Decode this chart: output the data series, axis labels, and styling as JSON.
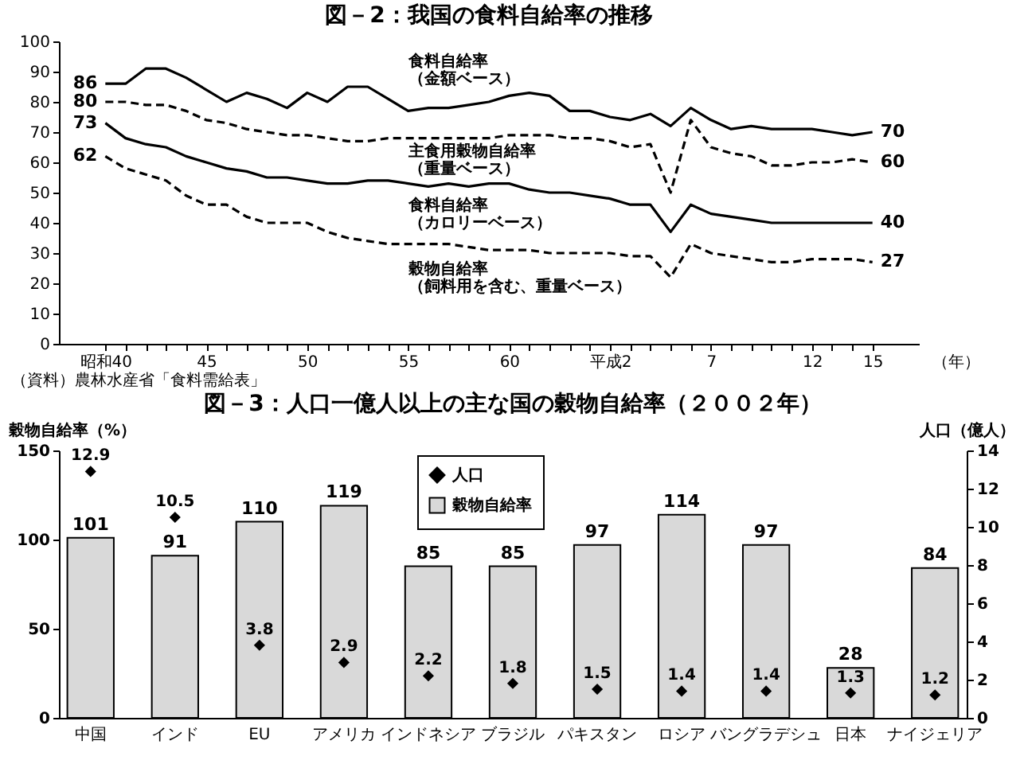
{
  "chart_data": [
    {
      "type": "line",
      "title": "図－2：我国の食料自給率の推移",
      "xlabel": "（年）",
      "categories": [
        "昭和40",
        null,
        null,
        null,
        null,
        "45",
        null,
        null,
        null,
        null,
        "50",
        null,
        null,
        null,
        null,
        "55",
        null,
        null,
        null,
        null,
        "60",
        null,
        null,
        null,
        null,
        "平成2",
        null,
        null,
        null,
        null,
        "7",
        null,
        null,
        null,
        null,
        "12",
        null,
        null,
        "15"
      ],
      "ylim": [
        0,
        100
      ],
      "yticks": [
        0,
        10,
        20,
        30,
        40,
        50,
        60,
        70,
        80,
        90,
        100
      ],
      "grid": false,
      "series": [
        {
          "name": "食料自給率（金額ベース）",
          "color": "#000000",
          "line_style": "solid",
          "values": [
            86,
            86,
            91,
            91,
            88,
            84,
            80,
            83,
            81,
            78,
            83,
            80,
            85,
            85,
            81,
            77,
            78,
            78,
            79,
            80,
            82,
            83,
            82,
            77,
            77,
            75,
            74,
            76,
            72,
            78,
            74,
            71,
            72,
            71,
            71,
            71,
            70,
            69,
            70
          ],
          "value_labels": [
            "86",
            null,
            null,
            null,
            null,
            null,
            null,
            null,
            null,
            null,
            null,
            null,
            null,
            null,
            null,
            null,
            null,
            null,
            null,
            null,
            null,
            null,
            null,
            null,
            null,
            null,
            null,
            null,
            null,
            null,
            null,
            null,
            null,
            null,
            null,
            null,
            null,
            null,
            "70"
          ]
        },
        {
          "name": "主食用穀物自給率（重量ベース）",
          "color": "#000000",
          "line_style": "dashed",
          "values": [
            80,
            80,
            79,
            79,
            77,
            74,
            73,
            71,
            70,
            69,
            69,
            68,
            67,
            67,
            68,
            68,
            68,
            68,
            68,
            68,
            69,
            69,
            69,
            68,
            68,
            67,
            65,
            66,
            50,
            74,
            65,
            63,
            62,
            59,
            59,
            60,
            60,
            61,
            60
          ],
          "value_labels": [
            "80",
            null,
            null,
            null,
            null,
            null,
            null,
            null,
            null,
            null,
            null,
            null,
            null,
            null,
            null,
            null,
            null,
            null,
            null,
            null,
            null,
            null,
            null,
            null,
            null,
            null,
            null,
            null,
            null,
            null,
            null,
            null,
            null,
            null,
            null,
            null,
            null,
            null,
            "60"
          ]
        },
        {
          "name": "食料自給率（カロリーベース）",
          "color": "#000000",
          "line_style": "solid",
          "values": [
            73,
            68,
            66,
            65,
            62,
            60,
            58,
            57,
            55,
            55,
            54,
            53,
            53,
            54,
            54,
            53,
            52,
            53,
            52,
            53,
            53,
            51,
            50,
            50,
            49,
            48,
            46,
            46,
            37,
            46,
            43,
            42,
            41,
            40,
            40,
            40,
            40,
            40,
            40
          ],
          "value_labels": [
            "73",
            null,
            null,
            null,
            null,
            null,
            null,
            null,
            null,
            null,
            null,
            null,
            null,
            null,
            null,
            null,
            null,
            null,
            null,
            null,
            null,
            null,
            null,
            null,
            null,
            null,
            null,
            null,
            null,
            null,
            null,
            null,
            null,
            null,
            null,
            null,
            null,
            null,
            "40"
          ]
        },
        {
          "name": "穀物自給率（飼料用を含む、重量ベース）",
          "color": "#000000",
          "line_style": "dashed",
          "values": [
            62,
            58,
            56,
            54,
            49,
            46,
            46,
            42,
            40,
            40,
            40,
            37,
            35,
            34,
            33,
            33,
            33,
            33,
            32,
            31,
            31,
            31,
            30,
            30,
            30,
            30,
            29,
            29,
            22,
            33,
            30,
            29,
            28,
            27,
            27,
            28,
            28,
            28,
            27
          ],
          "value_labels": [
            "62",
            null,
            null,
            null,
            null,
            null,
            null,
            null,
            null,
            null,
            null,
            null,
            null,
            null,
            null,
            null,
            null,
            null,
            null,
            null,
            null,
            null,
            null,
            null,
            null,
            null,
            null,
            null,
            null,
            null,
            null,
            null,
            null,
            null,
            null,
            null,
            null,
            null,
            "27"
          ]
        }
      ],
      "annotations": [
        "（資料）農林水産省「食料需給表」"
      ]
    },
    {
      "type": "bar",
      "title": "図－3：人口一億人以上の主な国の穀物自給率（２００２年）",
      "ylabel": "穀物自給率（%）",
      "y2label": "人口（億人）",
      "categories": [
        "中国",
        "インド",
        "EU",
        "アメリカ",
        "インドネシア",
        "ブラジル",
        "パキスタン",
        "ロシア",
        "バングラデシュ",
        "日本",
        "ナイジェリア"
      ],
      "ylim": [
        0,
        150
      ],
      "yticks": [
        0,
        50,
        100,
        150
      ],
      "y2lim": [
        0,
        14
      ],
      "y2ticks": [
        0,
        2,
        4,
        6,
        8,
        10,
        12,
        14
      ],
      "grid": false,
      "legend": "top",
      "data_labels": true,
      "marker": "diamond",
      "series": [
        {
          "name": "人口",
          "type": "scatter",
          "axis": "y2",
          "color": "#000000",
          "values": [
            12.9,
            10.5,
            3.8,
            2.9,
            2.2,
            1.8,
            1.5,
            1.4,
            1.4,
            1.3,
            1.2
          ]
        },
        {
          "name": "穀物自給率",
          "type": "bar",
          "color": "#d9d9d9",
          "values": [
            101,
            91,
            110,
            119,
            85,
            85,
            97,
            114,
            97,
            28,
            84
          ]
        }
      ]
    }
  ]
}
